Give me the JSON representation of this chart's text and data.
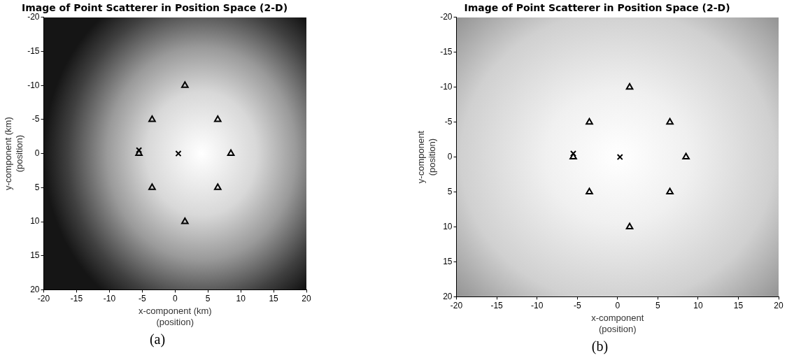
{
  "chart_data": [
    {
      "type": "scatter",
      "title": "Image of Point Scatterer in Position Space (2-D)",
      "xlabel": "x-component (km)\n(position)",
      "ylabel": "y-component (km)\n(position)",
      "xlim": [
        -20,
        20
      ],
      "xticks": [
        -20,
        -15,
        -10,
        -5,
        0,
        5,
        10,
        15,
        20
      ],
      "ylim": [
        20,
        -20
      ],
      "yticks": [
        -20,
        -15,
        -10,
        -5,
        0,
        5,
        10,
        15,
        20
      ],
      "annotations": [
        "(a)"
      ],
      "series": [
        {
          "color": "#000000",
          "marker": "triangle",
          "x": [
            1.5,
            -3.5,
            6.5,
            -5.5,
            8.5,
            -3.5,
            6.5,
            1.5
          ],
          "values": [
            -10,
            -5,
            -5,
            0,
            0,
            5,
            5,
            10
          ]
        },
        {
          "color": "#000000",
          "marker": "cross",
          "x": [
            0.5
          ],
          "values": [
            0
          ]
        },
        {
          "color": "#000000",
          "marker": "cross",
          "x": [
            -5.5
          ],
          "values": [
            -0.5
          ]
        }
      ]
    },
    {
      "type": "scatter",
      "title": "Image of Point Scatterer in Position Space (2-D)",
      "xlabel": "x-component\n(position)",
      "ylabel": "y-component\n(position)",
      "xlim": [
        -20,
        20
      ],
      "xticks": [
        -20,
        -15,
        -10,
        -5,
        0,
        5,
        10,
        15,
        20
      ],
      "ylim": [
        20,
        -20
      ],
      "yticks": [
        -20,
        -15,
        -10,
        -5,
        0,
        5,
        10,
        15,
        20
      ],
      "annotations": [
        "(b)"
      ],
      "series": [
        {
          "color": "#000000",
          "marker": "triangle",
          "x": [
            1.5,
            -3.5,
            6.5,
            -5.5,
            8.5,
            -3.5,
            6.5,
            1.5
          ],
          "values": [
            -10,
            -5,
            -5,
            0,
            0,
            5,
            5,
            10
          ]
        },
        {
          "color": "#000000",
          "marker": "cross",
          "x": [
            0.3
          ],
          "values": [
            0
          ]
        },
        {
          "color": "#000000",
          "marker": "cross",
          "x": [
            -5.5
          ],
          "values": [
            -0.5
          ]
        }
      ]
    }
  ]
}
